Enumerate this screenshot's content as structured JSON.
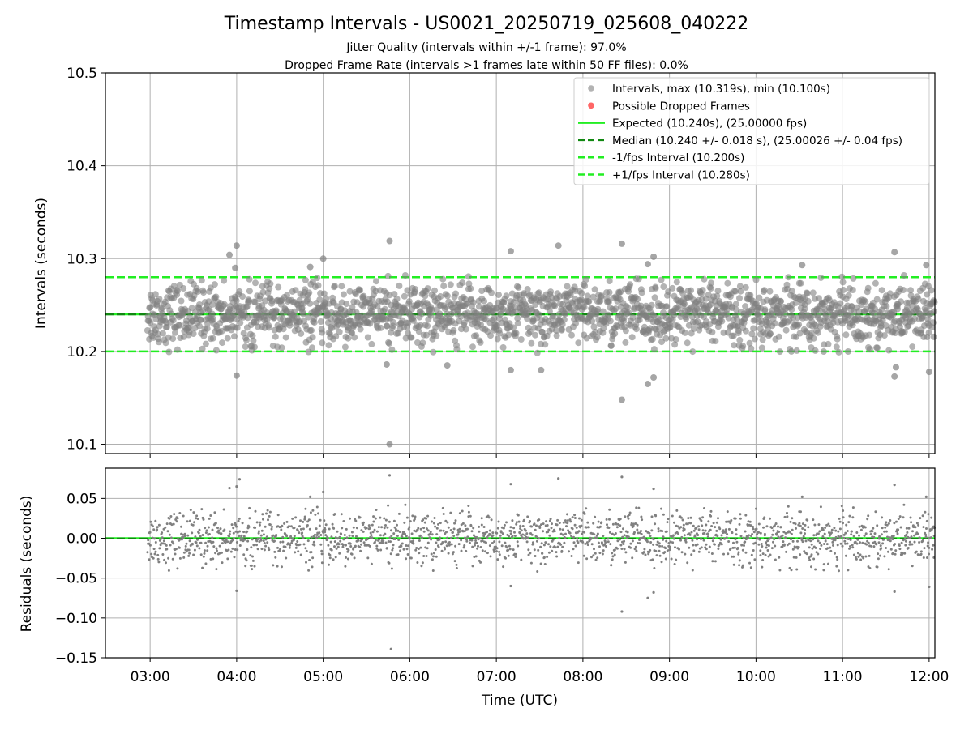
{
  "title": "Timestamp Intervals - US0021_20250719_025608_040222",
  "subtitle_1": "Jitter Quality (intervals within +/-1 frame): 97.0%",
  "subtitle_2": "Dropped Frame Rate (intervals >1 frames late within 50 FF files): 0.0%",
  "colors": {
    "points": "#808080",
    "dropped": "#ff5555",
    "expected": "#22ee22",
    "median": "#118811",
    "bounds": "#22ee22",
    "grid": "#b0b0b0"
  },
  "chart_data": [
    {
      "type": "scatter",
      "ylabel": "Intervals (seconds)",
      "xlabel": "",
      "xlim": [
        "02:29",
        "12:04"
      ],
      "ylim": [
        10.09,
        10.5
      ],
      "yticks": [
        "10.1",
        "10.2",
        "10.3",
        "10.4",
        "10.5"
      ],
      "ytick_values": [
        10.1,
        10.2,
        10.3,
        10.4,
        10.5
      ],
      "grid": true,
      "legend_position": "top-right",
      "legend": [
        "Intervals, max (10.319s), min (10.100s)",
        "Possible Dropped Frames",
        "Expected (10.240s), (25.00000 fps)",
        "Median (10.240 +/- 0.018 s), (25.00026 +/- 0.04 fps)",
        "-1/fps Interval (10.200s)",
        "+1/fps Interval (10.280s)"
      ],
      "reference_lines": {
        "expected": 10.24,
        "median": 10.24,
        "lower_bound": 10.2,
        "upper_bound": 10.28
      },
      "series": [
        {
          "name": "Intervals, max (10.319s), min (10.100s)",
          "typical_range": [
            10.2,
            10.28
          ],
          "center": 10.24,
          "outliers": [
            {
              "x": "03:55",
              "y": 10.304
            },
            {
              "x": "04:00",
              "y": 10.314
            },
            {
              "x": "03:59",
              "y": 10.29
            },
            {
              "x": "04:00",
              "y": 10.174
            },
            {
              "x": "05:00",
              "y": 10.3
            },
            {
              "x": "04:51",
              "y": 10.291
            },
            {
              "x": "05:46",
              "y": 10.319
            },
            {
              "x": "05:46",
              "y": 10.1
            },
            {
              "x": "05:44",
              "y": 10.186
            },
            {
              "x": "06:26",
              "y": 10.185
            },
            {
              "x": "07:10",
              "y": 10.308
            },
            {
              "x": "07:10",
              "y": 10.18
            },
            {
              "x": "07:43",
              "y": 10.314
            },
            {
              "x": "07:31",
              "y": 10.18
            },
            {
              "x": "08:27",
              "y": 10.316
            },
            {
              "x": "08:27",
              "y": 10.148
            },
            {
              "x": "08:45",
              "y": 10.165
            },
            {
              "x": "08:49",
              "y": 10.172
            },
            {
              "x": "08:49",
              "y": 10.302
            },
            {
              "x": "08:45",
              "y": 10.294
            },
            {
              "x": "10:32",
              "y": 10.293
            },
            {
              "x": "11:36",
              "y": 10.307
            },
            {
              "x": "11:36",
              "y": 10.173
            },
            {
              "x": "11:37",
              "y": 10.183
            },
            {
              "x": "11:58",
              "y": 10.293
            },
            {
              "x": "12:00",
              "y": 10.178
            }
          ]
        },
        {
          "name": "Possible Dropped Frames",
          "points": []
        }
      ]
    },
    {
      "type": "scatter",
      "ylabel": "Residuals (seconds)",
      "xlabel": "Time (UTC)",
      "xlim": [
        "02:29",
        "12:04"
      ],
      "xticks": [
        "03:00",
        "04:00",
        "05:00",
        "06:00",
        "07:00",
        "08:00",
        "09:00",
        "10:00",
        "11:00",
        "12:00"
      ],
      "ylim": [
        -0.15,
        0.088
      ],
      "yticks": [
        "0.05",
        "0.00",
        "−0.05",
        "−0.10",
        "−0.15"
      ],
      "ytick_values": [
        0.05,
        0.0,
        -0.05,
        -0.1,
        -0.15
      ],
      "grid": true,
      "reference_lines": {
        "zero": 0.0
      },
      "series": [
        {
          "name": "",
          "typical_range": [
            -0.04,
            0.04
          ],
          "center": 0.0,
          "outliers": [
            {
              "x": "03:55",
              "y": 0.063
            },
            {
              "x": "04:00",
              "y": 0.065
            },
            {
              "x": "04:02",
              "y": 0.074
            },
            {
              "x": "04:00",
              "y": -0.066
            },
            {
              "x": "05:00",
              "y": 0.058
            },
            {
              "x": "04:51",
              "y": 0.052
            },
            {
              "x": "05:46",
              "y": 0.079
            },
            {
              "x": "05:47",
              "y": -0.139
            },
            {
              "x": "07:10",
              "y": 0.068
            },
            {
              "x": "07:10",
              "y": -0.06
            },
            {
              "x": "07:43",
              "y": 0.075
            },
            {
              "x": "08:27",
              "y": 0.077
            },
            {
              "x": "08:27",
              "y": -0.092
            },
            {
              "x": "08:45",
              "y": -0.075
            },
            {
              "x": "08:49",
              "y": -0.068
            },
            {
              "x": "08:49",
              "y": 0.062
            },
            {
              "x": "10:32",
              "y": 0.052
            },
            {
              "x": "11:36",
              "y": 0.067
            },
            {
              "x": "11:36",
              "y": -0.067
            },
            {
              "x": "11:58",
              "y": 0.052
            },
            {
              "x": "12:00",
              "y": -0.061
            }
          ]
        }
      ]
    }
  ]
}
